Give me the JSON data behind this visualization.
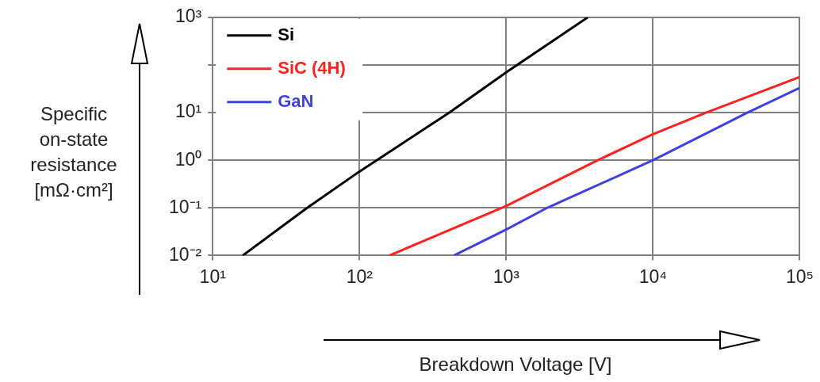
{
  "chart_data": {
    "type": "line",
    "xlabel": "Breakdown Voltage  [V]",
    "ylabel": "Specific on-state resistance [mΩ·cm²]",
    "log": "xy",
    "grid": true,
    "legend": "top left",
    "line_style": "solid",
    "marker": "none",
    "xlim": [
      10,
      100000
    ],
    "xticks": [
      {
        "value": 10,
        "label": "10¹"
      },
      {
        "value": 100,
        "label": "10²"
      },
      {
        "value": 1000,
        "label": "10³"
      },
      {
        "value": 10000,
        "label": "10⁴"
      },
      {
        "value": 100000,
        "label": "10⁵"
      }
    ],
    "ylim": [
      0.01,
      1000
    ],
    "yticks": [
      {
        "value": 0.01,
        "label": "10⁻²"
      },
      {
        "value": 0.1,
        "label": "10⁻¹"
      },
      {
        "value": 1,
        "label": "10⁰"
      },
      {
        "value": 10,
        "label": "10¹"
      },
      {
        "value": 100,
        "label": null
      },
      {
        "value": 1000,
        "label": "10³"
      }
    ],
    "series": [
      {
        "name": "Si",
        "color": "#000000",
        "x": [
          16,
          44,
          100,
          410,
          1000,
          3600
        ],
        "values": [
          0.01,
          0.1,
          0.58,
          10,
          70,
          1000
        ]
      },
      {
        "name": "SiC (4H)",
        "color": "#ff2020",
        "x": [
          160,
          1000,
          4200,
          10000,
          23000,
          100000
        ],
        "values": [
          0.01,
          0.11,
          1,
          3.5,
          10,
          56
        ]
      },
      {
        "name": "GaN",
        "color": "#4040e0",
        "x": [
          440,
          1000,
          1900,
          10000,
          44000,
          100000
        ],
        "values": [
          0.01,
          0.035,
          0.1,
          1,
          10,
          33
        ]
      }
    ]
  }
}
